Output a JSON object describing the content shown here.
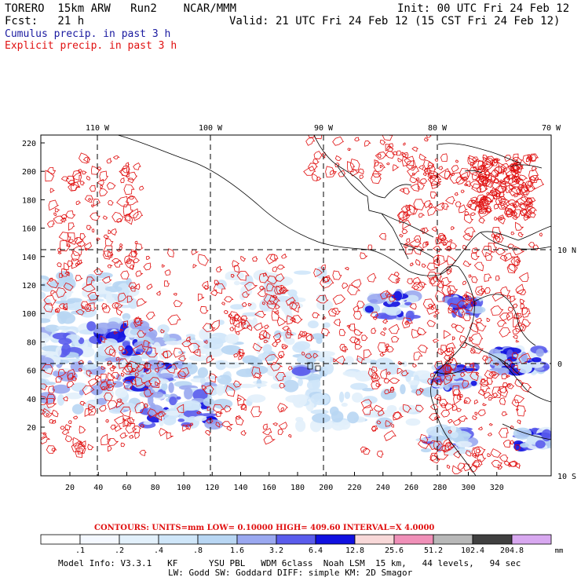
{
  "header": {
    "model": "TORERO  15km ARW   Run2    NCAR/MMM",
    "init": "Init: 00 UTC Fri 24 Feb 12",
    "fcst": "Fcst:   21 h",
    "valid": "Valid: 21 UTC Fri 24 Feb 12 (15 CST Fri 24 Feb 12)",
    "cumulus_label": "Cumulus precip. in past 3 h",
    "explicit_label": "Explicit precip. in past 3 h"
  },
  "colors": {
    "cumulus": "#1a1aa0",
    "explicit": "#e01010"
  },
  "map": {
    "top_lon_labels": [
      "110 W",
      "100 W",
      "90 W",
      "80 W",
      "70 W"
    ],
    "right_lat_labels": [
      "10 N",
      "0",
      "10 S"
    ],
    "left_ticks": [
      "220",
      "200",
      "180",
      "160",
      "140",
      "120",
      "100",
      "80",
      "60",
      "40",
      "20"
    ],
    "bottom_ticks": [
      "20",
      "40",
      "60",
      "80",
      "100",
      "120",
      "140",
      "160",
      "180",
      "200",
      "220",
      "240",
      "260",
      "280",
      "300",
      "320"
    ]
  },
  "contours_info": {
    "text": "CONTOURS:  UNITS=mm  LOW= 0.10000      HIGH=  409.60      INTERVAL=X  4.0000"
  },
  "colorbar": {
    "labels": [
      ".1",
      ".2",
      ".4",
      ".8",
      "1.6",
      "3.2",
      "6.4",
      "12.8",
      "25.6",
      "51.2",
      "102.4",
      "204.8"
    ],
    "unit": "mm",
    "colors": [
      "#ffffff",
      "#f4f8ff",
      "#e2f0fb",
      "#cfe6f9",
      "#b8d6f3",
      "#9aa8f0",
      "#5a5cec",
      "#1010e0",
      "#f8d8d8",
      "#f090b8",
      "#b8b8b8",
      "#404040",
      "#d8a8f0"
    ]
  },
  "footer": {
    "line1": "Model Info: V3.3.1   KF      YSU PBL   WDM 6class  Noah LSM  15 km,   44 levels,   94 sec",
    "line2": "LW: Godd SW: Goddard DIFF: simple KM: 2D Smagor"
  }
}
